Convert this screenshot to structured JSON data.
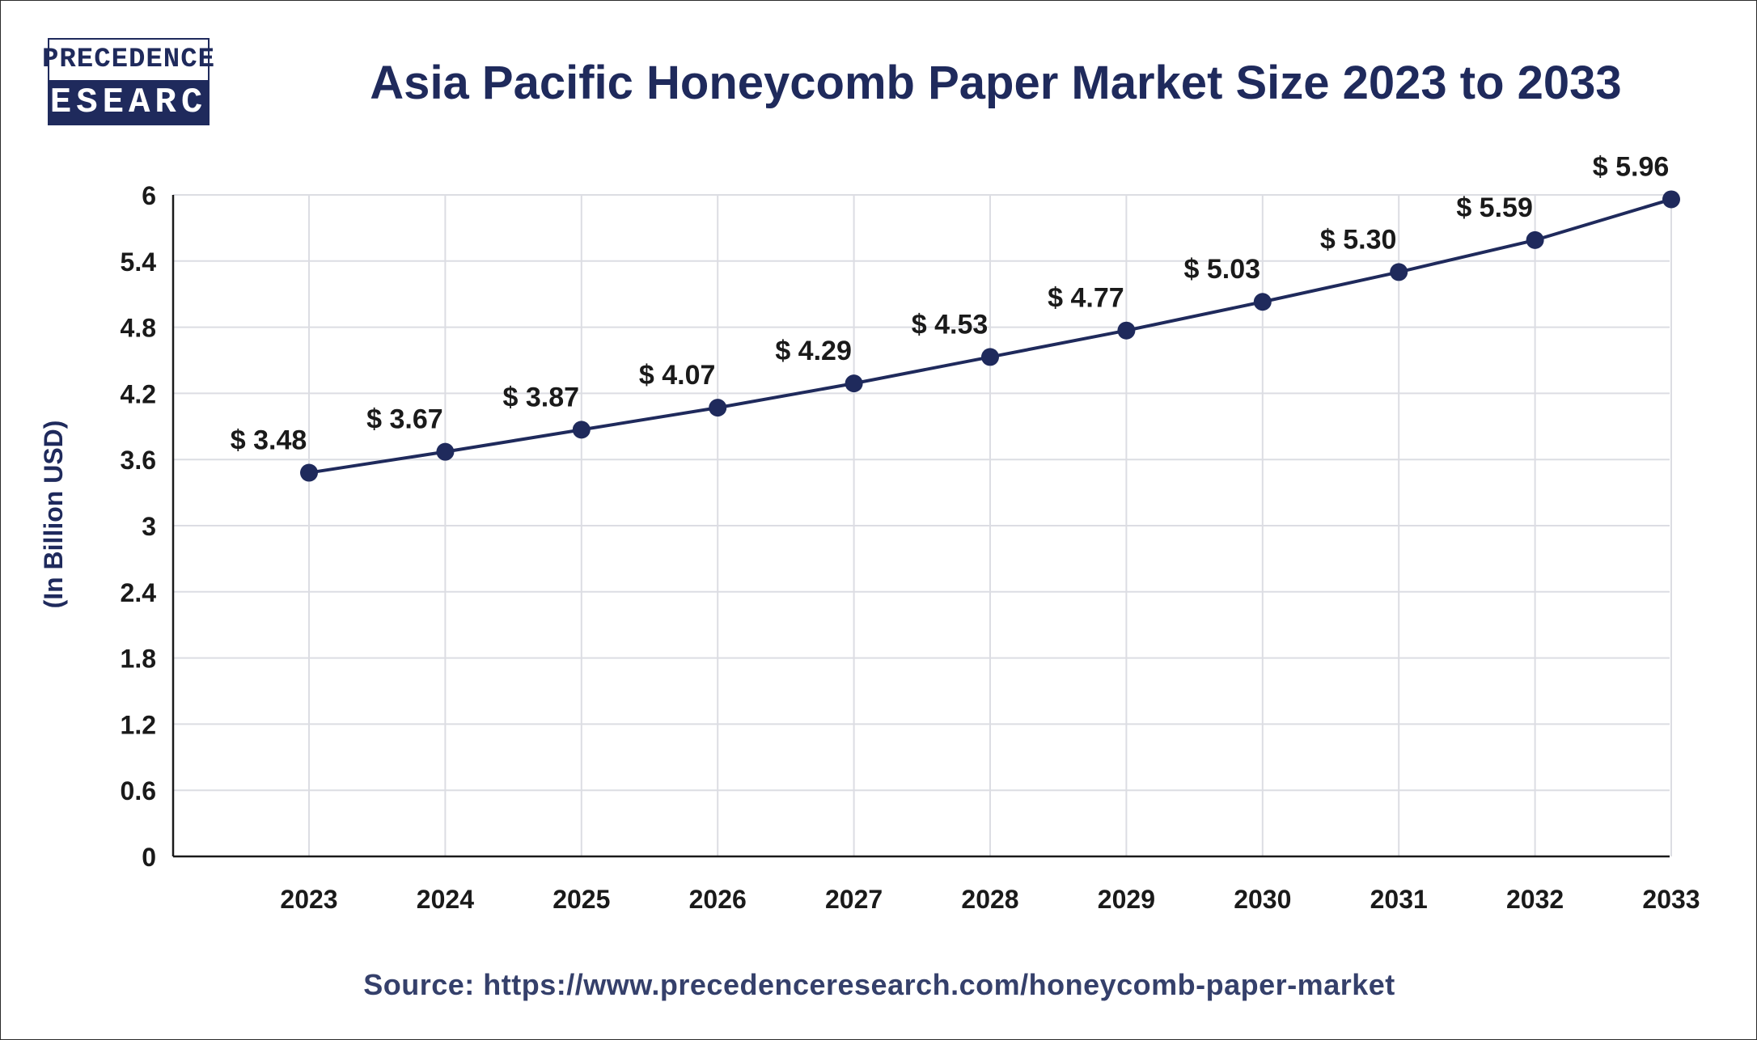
{
  "brand": {
    "logo_line1": "PRECEDENCE",
    "logo_line2": "RESEARCH",
    "color": "#1f2a5c"
  },
  "source_text": "Source: https://www.precedenceresearch.com/honeycomb-paper-market",
  "chart_data": {
    "type": "line",
    "title": "Asia Pacific Honeycomb Paper Market Size 2023 to 2033",
    "xlabel": "",
    "ylabel": "(In Billion USD)",
    "categories": [
      "2023",
      "2024",
      "2025",
      "2026",
      "2027",
      "2028",
      "2029",
      "2030",
      "2031",
      "2032",
      "2033"
    ],
    "series": [
      {
        "values": [
          3.48,
          3.67,
          3.87,
          4.07,
          4.29,
          4.53,
          4.77,
          5.03,
          5.3,
          5.59,
          5.96
        ],
        "data_labels": [
          "$ 3.48",
          "$ 3.67",
          "$ 3.87",
          "$ 4.07",
          "$ 4.29",
          "$ 4.53",
          "$ 4.77",
          "$ 5.03",
          "$ 5.30",
          "$ 5.59",
          "$ 5.96"
        ],
        "color": "#1f2a5c"
      }
    ],
    "ylim": [
      0,
      6
    ],
    "yticks": [
      "0",
      "0.6",
      "1.2",
      "1.8",
      "2.4",
      "3",
      "3.6",
      "4.2",
      "4.8",
      "5.4",
      "6"
    ],
    "grid": true
  }
}
